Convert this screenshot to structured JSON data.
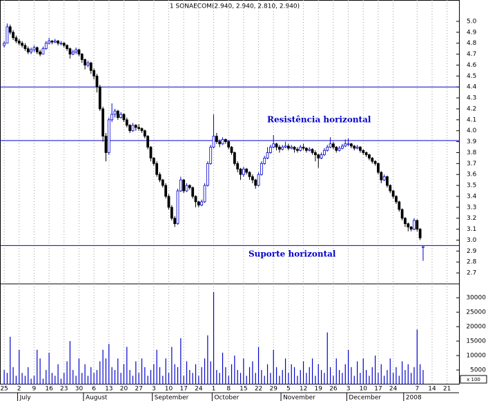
{
  "chart_data": {
    "type": "candlestick",
    "title": "1 SONAECOM(2.940, 2.940, 2.810, 2.940)",
    "annotations": [
      "Resistência horizontal",
      "Suporte horizontal"
    ],
    "volume_unit": "x 100",
    "up_color": "#0000cc",
    "down_color": "#000000",
    "level_color": "#0000cc",
    "volume_color": "#0000cc",
    "levels": [
      4.4,
      3.91,
      2.95
    ],
    "ylim": [
      2.6,
      5.195
    ],
    "yticks": [
      2.7,
      2.8,
      2.9,
      {
        "value": 3,
        "label": "3.0"
      },
      3.1,
      3.2,
      3.3,
      3.4,
      3.5,
      3.6,
      3.7,
      3.8,
      3.9,
      {
        "value": 4,
        "label": "4.0"
      },
      4.1,
      4.2,
      4.3,
      4.4,
      4.5,
      4.6,
      4.7,
      4.8,
      4.9,
      {
        "value": 5,
        "label": "5.0"
      }
    ],
    "volume_ylim": [
      0,
      34800
    ],
    "volume_yticks": [
      5000,
      10000,
      15000,
      20000,
      25000,
      30000
    ],
    "xlim": [
      -1.4,
      152
    ],
    "xticks": [
      {
        "value": 0,
        "label": "25"
      },
      {
        "value": 5,
        "label": "2"
      },
      {
        "value": 10,
        "label": "9"
      },
      {
        "value": 15,
        "label": "16"
      },
      {
        "value": 20,
        "label": "23"
      },
      {
        "value": 25,
        "label": "30"
      },
      {
        "value": 30,
        "label": "6"
      },
      {
        "value": 35,
        "label": "13"
      },
      {
        "value": 40,
        "label": "20"
      },
      {
        "value": 45,
        "label": "27"
      },
      {
        "value": 50,
        "label": "3"
      },
      {
        "value": 55,
        "label": "10"
      },
      {
        "value": 60,
        "label": "17"
      },
      {
        "value": 65,
        "label": "24"
      },
      {
        "value": 70,
        "label": "1"
      },
      {
        "value": 75,
        "label": "8"
      },
      {
        "value": 80,
        "label": "15"
      },
      {
        "value": 85,
        "label": "22"
      },
      {
        "value": 90,
        "label": "29"
      },
      {
        "value": 95,
        "label": "5"
      },
      {
        "value": 100,
        "label": "12"
      },
      {
        "value": 105,
        "label": "19"
      },
      {
        "value": 110,
        "label": "26"
      },
      {
        "value": 115,
        "label": "3"
      },
      {
        "value": 120,
        "label": "10"
      },
      {
        "value": 125,
        "label": "17"
      },
      {
        "value": 130,
        "label": "24"
      },
      {
        "value": 138,
        "label": "7"
      },
      {
        "value": 143,
        "label": "14"
      },
      {
        "value": 148,
        "label": "21"
      }
    ],
    "month_ticks": [
      {
        "value": 4.5,
        "label": "July"
      },
      {
        "value": 26.5,
        "label": "August"
      },
      {
        "value": 49.5,
        "label": "September"
      },
      {
        "value": 69.5,
        "label": "October"
      },
      {
        "value": 92.5,
        "label": "November"
      },
      {
        "value": 114.5,
        "label": "December"
      },
      {
        "value": 133.5,
        "label": "2008"
      }
    ],
    "ohlc": [
      [
        4.78,
        4.82,
        4.76,
        4.8
      ],
      [
        4.8,
        4.98,
        4.8,
        4.95
      ],
      [
        4.95,
        4.97,
        4.88,
        4.9
      ],
      [
        4.9,
        4.92,
        4.83,
        4.85
      ],
      [
        4.85,
        4.87,
        4.8,
        4.82
      ],
      [
        4.82,
        4.84,
        4.78,
        4.8
      ],
      [
        4.8,
        4.82,
        4.76,
        4.78
      ],
      [
        4.78,
        4.8,
        4.73,
        4.75
      ],
      [
        4.75,
        4.77,
        4.7,
        4.72
      ],
      [
        4.72,
        4.76,
        4.7,
        4.74
      ],
      [
        4.74,
        4.78,
        4.72,
        4.76
      ],
      [
        4.76,
        4.77,
        4.7,
        4.72
      ],
      [
        4.72,
        4.74,
        4.68,
        4.7
      ],
      [
        4.7,
        4.77,
        4.7,
        4.75
      ],
      [
        4.75,
        4.82,
        4.74,
        4.8
      ],
      [
        4.8,
        4.85,
        4.79,
        4.82
      ],
      [
        4.82,
        4.83,
        4.79,
        4.81
      ],
      [
        4.81,
        4.84,
        4.8,
        4.82
      ],
      [
        4.82,
        4.83,
        4.78,
        4.8
      ],
      [
        4.8,
        4.82,
        4.78,
        4.8
      ],
      [
        4.8,
        4.81,
        4.76,
        4.78
      ],
      [
        4.78,
        4.79,
        4.73,
        4.75
      ],
      [
        4.75,
        4.76,
        4.66,
        4.7
      ],
      [
        4.7,
        4.74,
        4.69,
        4.72
      ],
      [
        4.72,
        4.76,
        4.7,
        4.74
      ],
      [
        4.74,
        4.75,
        4.68,
        4.7
      ],
      [
        4.7,
        4.71,
        4.62,
        4.65
      ],
      [
        4.65,
        4.66,
        4.56,
        4.6
      ],
      [
        4.6,
        4.64,
        4.58,
        4.62
      ],
      [
        4.62,
        4.63,
        4.52,
        4.55
      ],
      [
        4.55,
        4.57,
        4.47,
        4.5
      ],
      [
        4.5,
        4.52,
        4.35,
        4.4
      ],
      [
        4.4,
        4.42,
        4.18,
        4.2
      ],
      [
        4.2,
        4.22,
        3.9,
        3.95
      ],
      [
        3.95,
        3.98,
        3.72,
        3.8
      ],
      [
        3.8,
        4.12,
        3.78,
        4.1
      ],
      [
        4.1,
        4.25,
        4.08,
        4.15
      ],
      [
        4.15,
        4.2,
        4.12,
        4.18
      ],
      [
        4.18,
        4.19,
        4.1,
        4.12
      ],
      [
        4.12,
        4.17,
        4.11,
        4.15
      ],
      [
        4.15,
        4.16,
        4.08,
        4.1
      ],
      [
        4.1,
        4.12,
        4.03,
        4.05
      ],
      [
        4.05,
        4.06,
        3.98,
        4.0
      ],
      [
        4.0,
        4.07,
        3.99,
        4.05
      ],
      [
        4.05,
        4.06,
        4.0,
        4.03
      ],
      [
        4.03,
        4.06,
        4.0,
        4.02
      ],
      [
        4.02,
        4.03,
        3.98,
        4.0
      ],
      [
        4.0,
        4.01,
        3.93,
        3.95
      ],
      [
        3.95,
        3.96,
        3.83,
        3.85
      ],
      [
        3.85,
        3.86,
        3.72,
        3.75
      ],
      [
        3.75,
        3.76,
        3.68,
        3.7
      ],
      [
        3.7,
        3.72,
        3.58,
        3.6
      ],
      [
        3.6,
        3.62,
        3.53,
        3.55
      ],
      [
        3.55,
        3.56,
        3.48,
        3.5
      ],
      [
        3.5,
        3.52,
        3.38,
        3.4
      ],
      [
        3.4,
        3.42,
        3.28,
        3.3
      ],
      [
        3.3,
        3.32,
        3.18,
        3.2
      ],
      [
        3.2,
        3.22,
        3.12,
        3.15
      ],
      [
        3.15,
        3.47,
        3.14,
        3.45
      ],
      [
        3.45,
        3.58,
        3.44,
        3.55
      ],
      [
        3.55,
        3.56,
        3.43,
        3.45
      ],
      [
        3.45,
        3.52,
        3.44,
        3.5
      ],
      [
        3.5,
        3.51,
        3.46,
        3.48
      ],
      [
        3.48,
        3.49,
        3.38,
        3.4
      ],
      [
        3.4,
        3.41,
        3.3,
        3.35
      ],
      [
        3.35,
        3.36,
        3.3,
        3.32
      ],
      [
        3.32,
        3.37,
        3.31,
        3.35
      ],
      [
        3.35,
        3.52,
        3.34,
        3.5
      ],
      [
        3.5,
        3.72,
        3.49,
        3.7
      ],
      [
        3.7,
        3.87,
        3.69,
        3.85
      ],
      [
        3.85,
        4.15,
        3.84,
        3.95
      ],
      [
        3.95,
        3.98,
        3.88,
        3.9
      ],
      [
        3.9,
        3.92,
        3.85,
        3.88
      ],
      [
        3.88,
        3.94,
        3.87,
        3.92
      ],
      [
        3.92,
        3.93,
        3.88,
        3.9
      ],
      [
        3.9,
        3.91,
        3.83,
        3.85
      ],
      [
        3.85,
        3.86,
        3.78,
        3.8
      ],
      [
        3.8,
        3.81,
        3.68,
        3.7
      ],
      [
        3.7,
        3.72,
        3.62,
        3.65
      ],
      [
        3.65,
        3.66,
        3.55,
        3.6
      ],
      [
        3.6,
        3.67,
        3.58,
        3.65
      ],
      [
        3.65,
        3.66,
        3.6,
        3.62
      ],
      [
        3.62,
        3.63,
        3.55,
        3.58
      ],
      [
        3.58,
        3.6,
        3.52,
        3.55
      ],
      [
        3.55,
        3.56,
        3.47,
        3.5
      ],
      [
        3.5,
        3.62,
        3.49,
        3.6
      ],
      [
        3.6,
        3.72,
        3.59,
        3.7
      ],
      [
        3.7,
        3.77,
        3.69,
        3.75
      ],
      [
        3.75,
        3.85,
        3.74,
        3.8
      ],
      [
        3.8,
        3.87,
        3.79,
        3.85
      ],
      [
        3.85,
        3.96,
        3.84,
        3.88
      ],
      [
        3.88,
        3.89,
        3.82,
        3.85
      ],
      [
        3.85,
        3.87,
        3.8,
        3.83
      ],
      [
        3.83,
        3.87,
        3.82,
        3.85
      ],
      [
        3.85,
        3.9,
        3.84,
        3.86
      ],
      [
        3.86,
        3.88,
        3.82,
        3.84
      ],
      [
        3.84,
        3.87,
        3.83,
        3.85
      ],
      [
        3.85,
        3.86,
        3.8,
        3.83
      ],
      [
        3.83,
        3.85,
        3.8,
        3.82
      ],
      [
        3.82,
        3.87,
        3.81,
        3.85
      ],
      [
        3.85,
        3.88,
        3.82,
        3.84
      ],
      [
        3.84,
        3.85,
        3.8,
        3.82
      ],
      [
        3.82,
        3.85,
        3.81,
        3.83
      ],
      [
        3.83,
        3.84,
        3.78,
        3.8
      ],
      [
        3.8,
        3.82,
        3.72,
        3.78
      ],
      [
        3.78,
        3.79,
        3.66,
        3.75
      ],
      [
        3.75,
        3.8,
        3.74,
        3.78
      ],
      [
        3.78,
        3.84,
        3.77,
        3.82
      ],
      [
        3.82,
        3.87,
        3.81,
        3.85
      ],
      [
        3.85,
        3.94,
        3.84,
        3.88
      ],
      [
        3.88,
        3.9,
        3.83,
        3.85
      ],
      [
        3.85,
        3.86,
        3.8,
        3.82
      ],
      [
        3.82,
        3.86,
        3.81,
        3.84
      ],
      [
        3.84,
        3.88,
        3.83,
        3.86
      ],
      [
        3.86,
        3.92,
        3.85,
        3.88
      ],
      [
        3.88,
        3.93,
        3.86,
        3.88
      ],
      [
        3.88,
        3.89,
        3.84,
        3.86
      ],
      [
        3.86,
        3.87,
        3.82,
        3.84
      ],
      [
        3.84,
        3.87,
        3.83,
        3.85
      ],
      [
        3.85,
        3.86,
        3.8,
        3.82
      ],
      [
        3.82,
        3.83,
        3.78,
        3.8
      ],
      [
        3.8,
        3.81,
        3.76,
        3.78
      ],
      [
        3.78,
        3.79,
        3.73,
        3.75
      ],
      [
        3.75,
        3.76,
        3.7,
        3.72
      ],
      [
        3.72,
        3.73,
        3.68,
        3.7
      ],
      [
        3.7,
        3.71,
        3.6,
        3.62
      ],
      [
        3.62,
        3.63,
        3.52,
        3.55
      ],
      [
        3.55,
        3.6,
        3.54,
        3.58
      ],
      [
        3.58,
        3.59,
        3.48,
        3.5
      ],
      [
        3.5,
        3.51,
        3.43,
        3.45
      ],
      [
        3.45,
        3.46,
        3.38,
        3.4
      ],
      [
        3.4,
        3.41,
        3.33,
        3.35
      ],
      [
        3.35,
        3.36,
        3.26,
        3.28
      ],
      [
        3.28,
        3.29,
        3.18,
        3.2
      ],
      [
        3.2,
        3.21,
        3.12,
        3.15
      ],
      [
        3.15,
        3.16,
        3.08,
        3.12
      ],
      [
        3.12,
        3.13,
        3.08,
        3.1
      ],
      [
        3.1,
        3.2,
        3.09,
        3.18
      ],
      [
        3.18,
        3.19,
        3.08,
        3.1
      ],
      [
        3.1,
        3.11,
        3.0,
        3.02
      ],
      [
        2.94,
        2.94,
        2.81,
        2.94
      ]
    ],
    "volume": [
      5000,
      4000,
      16500,
      6000,
      3000,
      12000,
      4000,
      3000,
      6000,
      2000,
      3000,
      12000,
      9000,
      2000,
      5000,
      11000,
      4000,
      3000,
      7000,
      2000,
      4000,
      8000,
      15000,
      5000,
      3000,
      9000,
      4000,
      7000,
      3000,
      6000,
      4000,
      5000,
      8000,
      12000,
      9000,
      14000,
      6000,
      5000,
      9000,
      4000,
      7000,
      13000,
      5000,
      3000,
      8000,
      4000,
      9000,
      6000,
      3000,
      5000,
      7000,
      12000,
      6000,
      3000,
      9000,
      4000,
      13000,
      7000,
      6000,
      16000,
      3000,
      8000,
      5000,
      4000,
      7000,
      3000,
      6000,
      9000,
      17000,
      8000,
      32000,
      5000,
      4000,
      11000,
      6000,
      3000,
      7000,
      10000,
      5000,
      4000,
      9000,
      3000,
      6000,
      8000,
      4000,
      13000,
      5000,
      3000,
      7000,
      4000,
      12000,
      6000,
      3000,
      5000,
      9000,
      4000,
      7000,
      6000,
      3000,
      5000,
      8000,
      4000,
      6000,
      9000,
      3000,
      7000,
      5000,
      4000,
      18000,
      6000,
      3000,
      9000,
      5000,
      4000,
      7000,
      12000,
      6000,
      3000,
      8000,
      4000,
      9000,
      5000,
      3000,
      6000,
      10000,
      4000,
      7000,
      3000,
      5000,
      9000,
      4000,
      6000,
      3000,
      8000,
      5000,
      7000,
      4000,
      6000,
      19000,
      7000,
      5000
    ]
  }
}
